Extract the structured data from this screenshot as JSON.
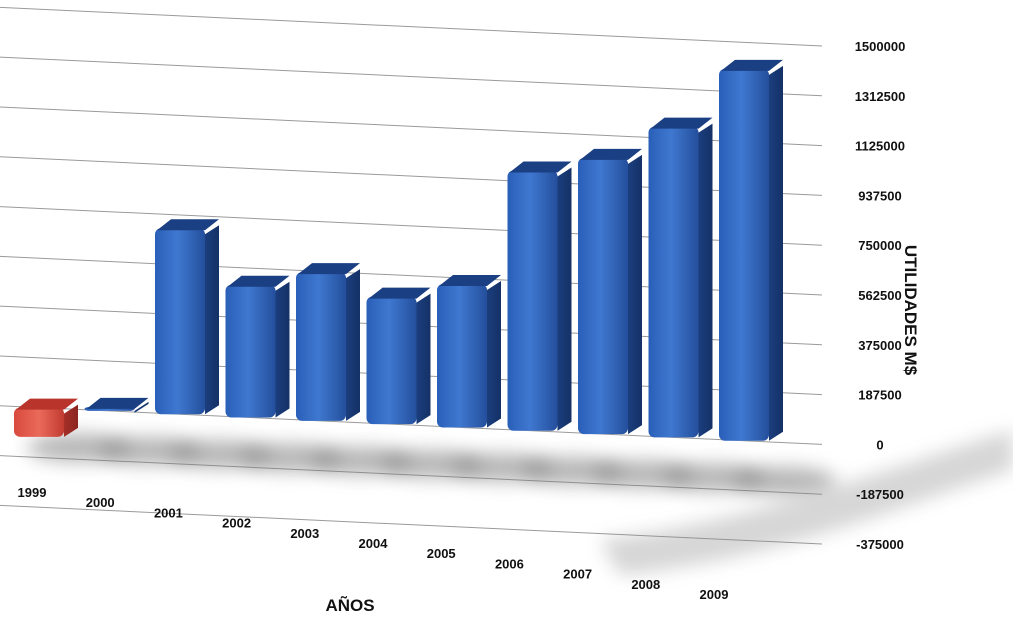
{
  "chart_data": {
    "type": "bar",
    "title": "",
    "xlabel": "AÑOS",
    "ylabel": "UTILIDADES M$",
    "categories": [
      "1999",
      "2000",
      "2001",
      "2002",
      "2003",
      "2004",
      "2005",
      "2006",
      "2007",
      "2008",
      "2009"
    ],
    "values": [
      -110000,
      15000,
      700000,
      500000,
      560000,
      480000,
      540000,
      980000,
      1040000,
      1170000,
      1400000
    ],
    "ylim": [
      -375000,
      1500000
    ],
    "yticks": [
      "1500000",
      "1312500",
      "1125000",
      "937500",
      "750000",
      "562500",
      "375000",
      "187500",
      "0",
      "-187500",
      "-375000"
    ],
    "grid": true,
    "colors": {
      "positive": "#2f5fb0",
      "negative": "#d9433a"
    }
  }
}
